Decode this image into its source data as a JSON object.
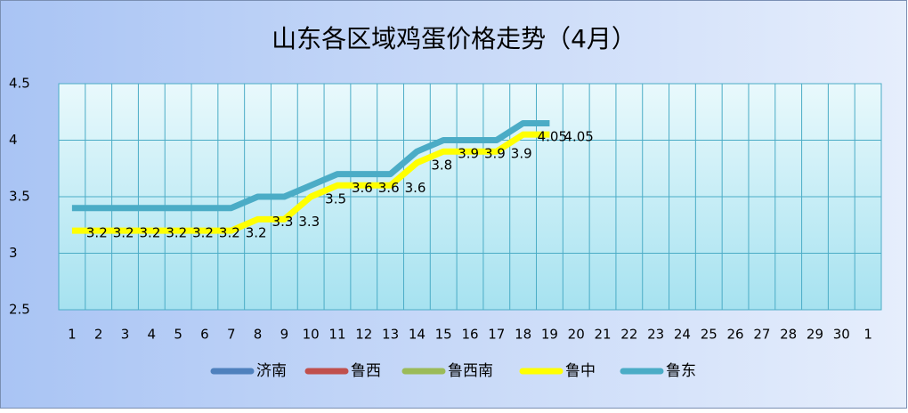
{
  "chart_data": {
    "type": "line",
    "title": "山东各区域鸡蛋价格走势（4月）",
    "categories": [
      "1",
      "2",
      "3",
      "4",
      "5",
      "6",
      "7",
      "8",
      "9",
      "10",
      "11",
      "12",
      "13",
      "14",
      "15",
      "16",
      "17",
      "18",
      "19",
      "20",
      "21",
      "22",
      "23",
      "24",
      "25",
      "26",
      "27",
      "28",
      "29",
      "30",
      "1"
    ],
    "ylim": [
      2.5,
      4.5
    ],
    "yticks": [
      2.5,
      3,
      3.5,
      4,
      4.5
    ],
    "grid": true,
    "legend": "bottom",
    "series": [
      {
        "name": "济南",
        "color": "#4f81bd",
        "values": [
          null,
          null,
          null,
          null,
          null,
          null,
          null,
          null,
          null,
          null,
          null,
          null,
          null,
          null,
          null,
          null,
          null,
          null,
          null,
          null,
          null,
          null,
          null,
          null,
          null,
          null,
          null,
          null,
          null,
          null,
          null
        ]
      },
      {
        "name": "鲁西",
        "color": "#c0504d",
        "values": [
          null,
          null,
          null,
          null,
          null,
          null,
          null,
          null,
          null,
          null,
          null,
          null,
          null,
          null,
          null,
          null,
          null,
          null,
          null,
          null,
          null,
          null,
          null,
          null,
          null,
          null,
          null,
          null,
          null,
          null,
          null
        ]
      },
      {
        "name": "鲁西南",
        "color": "#9bbb59",
        "values": [
          null,
          null,
          null,
          null,
          null,
          null,
          null,
          null,
          null,
          null,
          null,
          null,
          null,
          null,
          null,
          null,
          null,
          null,
          null,
          null,
          null,
          null,
          null,
          null,
          null,
          null,
          null,
          null,
          null,
          null,
          null
        ]
      },
      {
        "name": "鲁中",
        "color": "#ffff00",
        "show_labels": true,
        "values": [
          3.2,
          3.2,
          3.2,
          3.2,
          3.2,
          3.2,
          3.2,
          3.3,
          3.3,
          3.5,
          3.6,
          3.6,
          3.6,
          3.8,
          3.9,
          3.9,
          3.9,
          4.05,
          4.05,
          null,
          null,
          null,
          null,
          null,
          null,
          null,
          null,
          null,
          null,
          null,
          null
        ]
      },
      {
        "name": "鲁东",
        "color": "#4bacc6",
        "values": [
          3.4,
          3.4,
          3.4,
          3.4,
          3.4,
          3.4,
          3.4,
          3.5,
          3.5,
          3.6,
          3.7,
          3.7,
          3.7,
          3.9,
          4.0,
          4.0,
          4.0,
          4.15,
          4.15,
          null,
          null,
          null,
          null,
          null,
          null,
          null,
          null,
          null,
          null,
          null,
          null
        ]
      }
    ]
  }
}
